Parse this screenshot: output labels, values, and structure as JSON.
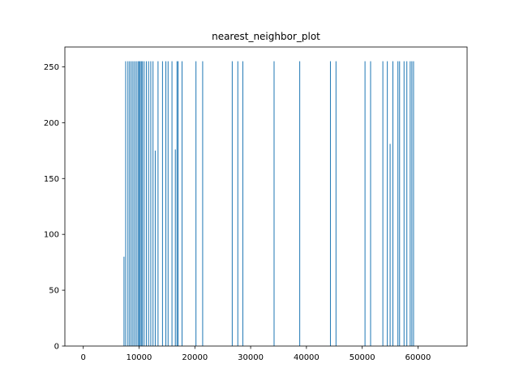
{
  "chart_data": {
    "type": "bar",
    "title": "nearest_neighbor_plot",
    "xlabel": "",
    "ylabel": "",
    "xlim": [
      -3300,
      68800
    ],
    "ylim": [
      0,
      267.75
    ],
    "xticks": [
      0,
      10000,
      20000,
      30000,
      40000,
      50000,
      60000
    ],
    "yticks": [
      0,
      50,
      100,
      150,
      200,
      250
    ],
    "bar_width": 50,
    "bar_color": "#1f77b4",
    "series": [
      {
        "x": [
          7300,
          7600,
          8000,
          8300,
          8600,
          8900,
          9200,
          9500,
          9800,
          10000,
          10200,
          10400,
          10600,
          10900,
          11300,
          11700,
          12100,
          12500,
          12900,
          13400,
          14200,
          14800,
          15200,
          15900,
          16500,
          16800,
          17000,
          17700,
          20200,
          21400,
          26700,
          27700,
          28600,
          34200,
          38800,
          44300,
          45300,
          50500,
          51500,
          53700,
          54500,
          55000,
          55500,
          56400,
          56700,
          57500,
          58000,
          58600,
          58900,
          59200
        ],
        "values": [
          80,
          255,
          255,
          255,
          255,
          255,
          255,
          255,
          255,
          255,
          255,
          255,
          255,
          255,
          255,
          255,
          255,
          255,
          175,
          255,
          255,
          255,
          255,
          255,
          176,
          255,
          255,
          255,
          255,
          255,
          255,
          255,
          255,
          255,
          255,
          255,
          255,
          255,
          255,
          255,
          255,
          181,
          255,
          255,
          255,
          255,
          255,
          255,
          255,
          255
        ]
      }
    ]
  }
}
